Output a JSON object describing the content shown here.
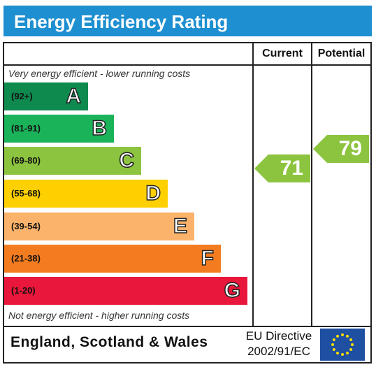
{
  "title": "Energy Efficiency Rating",
  "columns": {
    "current": "Current",
    "potential": "Potential"
  },
  "top_note": "Very energy efficient - lower running costs",
  "bottom_note": "Not energy efficient - higher running costs",
  "footer": {
    "country": "England, Scotland & Wales",
    "directive_line1": "EU Directive",
    "directive_line2": "2002/91/EC"
  },
  "chart_data": {
    "type": "bar",
    "bands": [
      {
        "letter": "A",
        "range": "(92+)",
        "color": "#0f8a4f"
      },
      {
        "letter": "B",
        "range": "(81-91)",
        "color": "#1bb35a"
      },
      {
        "letter": "C",
        "range": "(69-80)",
        "color": "#8cc43f"
      },
      {
        "letter": "D",
        "range": "(55-68)",
        "color": "#fed000"
      },
      {
        "letter": "E",
        "range": "(39-54)",
        "color": "#fbb36b"
      },
      {
        "letter": "F",
        "range": "(21-38)",
        "color": "#f47c20"
      },
      {
        "letter": "G",
        "range": "(1-20)",
        "color": "#e9173b"
      }
    ],
    "current": {
      "value": "71",
      "band": "C",
      "color": "#8cc43f"
    },
    "potential": {
      "value": "79",
      "band": "C",
      "color": "#8cc43f"
    }
  }
}
